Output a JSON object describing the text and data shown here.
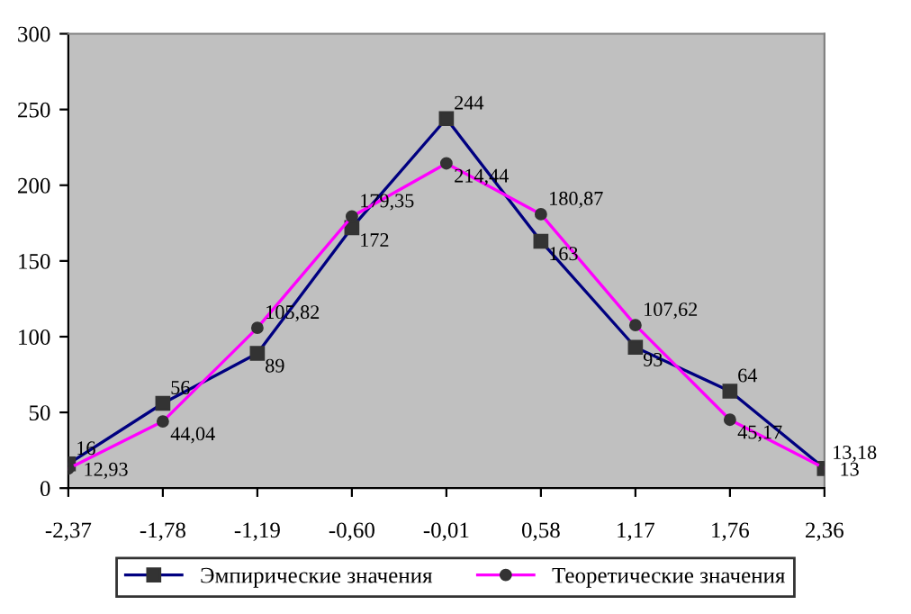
{
  "chart_data": {
    "type": "line",
    "categories": [
      "-2,37",
      "-1,78",
      "-1,19",
      "-0,60",
      "-0,01",
      "0,58",
      "1,17",
      "1,76",
      "2,36"
    ],
    "series": [
      {
        "name": "Эмпирические значения",
        "color": "#000080",
        "marker": "square",
        "values": [
          16,
          56,
          89,
          172,
          244,
          163,
          93,
          64,
          13
        ],
        "value_labels": [
          "16",
          "56",
          "89",
          "172",
          "244",
          "163",
          "93",
          "64",
          "13"
        ]
      },
      {
        "name": "Теоретические значения",
        "color": "#ff00ff",
        "marker": "circle",
        "values": [
          12.93,
          44.04,
          105.82,
          179.35,
          214.44,
          180.87,
          107.62,
          45.17,
          13.18
        ],
        "value_labels": [
          "12,93",
          "44,04",
          "105,82",
          "179,35",
          "214,44",
          "180,87",
          "107,62",
          "45,17",
          "13,18"
        ]
      }
    ],
    "ylim": [
      0,
      300
    ],
    "yticks": [
      0,
      50,
      100,
      150,
      200,
      250,
      300
    ],
    "grid": false,
    "legend": "bottom",
    "line_style": "solid"
  }
}
